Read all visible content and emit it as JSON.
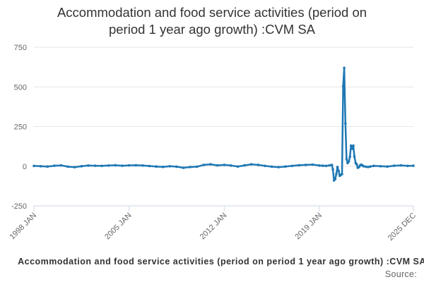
{
  "chart_data": {
    "type": "line",
    "title": "Accommodation and food service activities (period on period 1 year ago growth) :CVM SA",
    "title_lines": [
      "Accommodation and food service activities (period on",
      "period 1 year ago growth) :CVM SA"
    ],
    "xlabel": "Accommodation and food service activities (period on period 1 year ago growth) :CVM SA",
    "source_label": "Source:",
    "ylabel": "",
    "ylim": [
      -250,
      750
    ],
    "yticks": [
      -250,
      0,
      250,
      500,
      750
    ],
    "x_range": [
      "1998 JAN",
      "2025 DEC"
    ],
    "xticks": [
      "1998 JAN",
      "2005 JAN",
      "2012 JAN",
      "2019 JAN",
      "2025 DEC"
    ],
    "grid": true,
    "series": [
      {
        "name": "Accommodation and food service activities (period on period 1 year ago growth) :CVM SA",
        "color": "#1f78b4",
        "x": [
          1998.0,
          1998.5,
          1999.0,
          1999.5,
          2000.0,
          2000.5,
          2001.0,
          2001.5,
          2002.0,
          2002.5,
          2003.0,
          2003.5,
          2004.0,
          2004.5,
          2005.0,
          2005.5,
          2006.0,
          2006.5,
          2007.0,
          2007.5,
          2008.0,
          2008.5,
          2009.0,
          2009.5,
          2010.0,
          2010.5,
          2011.0,
          2011.5,
          2012.0,
          2012.5,
          2013.0,
          2013.5,
          2014.0,
          2014.5,
          2015.0,
          2015.5,
          2016.0,
          2016.5,
          2017.0,
          2017.5,
          2018.0,
          2018.5,
          2019.0,
          2019.25,
          2019.5,
          2019.75,
          2019.92,
          2020.0,
          2020.08,
          2020.17,
          2020.25,
          2020.33,
          2020.42,
          2020.5,
          2020.58,
          2020.67,
          2020.75,
          2020.83,
          2020.92,
          2021.0,
          2021.08,
          2021.17,
          2021.25,
          2021.33,
          2021.42,
          2021.5,
          2021.58,
          2021.67,
          2021.75,
          2021.83,
          2021.92,
          2022.0,
          2022.08,
          2022.17,
          2022.25,
          2022.42,
          2022.58,
          2022.75,
          2023.0,
          2023.5,
          2024.0,
          2024.5,
          2025.0,
          2025.5,
          2025.92
        ],
        "values": [
          2,
          0,
          -2,
          3,
          5,
          -3,
          -6,
          0,
          4,
          3,
          2,
          4,
          6,
          3,
          5,
          6,
          4,
          1,
          -2,
          -4,
          0,
          -3,
          -10,
          -5,
          -3,
          8,
          12,
          5,
          8,
          4,
          -2,
          5,
          12,
          8,
          2,
          -3,
          -6,
          -2,
          2,
          6,
          8,
          10,
          4,
          3,
          2,
          5,
          8,
          -20,
          -90,
          -80,
          -50,
          -5,
          -30,
          -60,
          -55,
          -50,
          505,
          620,
          270,
          45,
          20,
          30,
          60,
          130,
          110,
          130,
          60,
          20,
          12,
          -10,
          -5,
          5,
          10,
          5,
          0,
          -3,
          -5,
          -2,
          2,
          0,
          -2,
          3,
          5,
          2,
          3
        ]
      }
    ]
  }
}
